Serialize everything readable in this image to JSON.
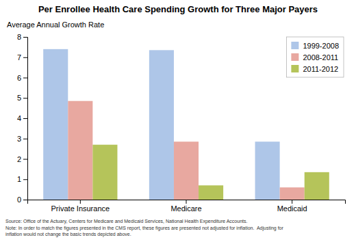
{
  "chart_data": {
    "type": "bar",
    "title": "Per Enrollee Health Care Spending Growth for Three Major Payers",
    "subtitle": "Average Annual Growth Rate",
    "categories": [
      "Private Insurance",
      "Medicare",
      "Medicaid"
    ],
    "series": [
      {
        "name": "1999-2008",
        "values": [
          7.4,
          7.35,
          2.85
        ],
        "color": "#aec6e8"
      },
      {
        "name": "2008-2011",
        "values": [
          4.85,
          2.85,
          0.6
        ],
        "color": "#e8a8a0"
      },
      {
        "name": "2011-2012",
        "values": [
          2.7,
          0.7,
          1.35
        ],
        "color": "#b5c45a"
      }
    ],
    "ylim": [
      0,
      8
    ],
    "yticks": [
      0,
      1,
      2,
      3,
      4,
      5,
      6,
      7,
      8
    ],
    "grid": false,
    "legend": "upper right",
    "source": "Source: Office of the Actuary, Centers for Medicare and Medicaid Services, National Health Expenditure Accounts.\nNote: In order to match the figures presented in the CMS report, these figures are presented not adjusted for inflation.  Adjusting for\ninflation would not change the basic trends depicted above."
  }
}
